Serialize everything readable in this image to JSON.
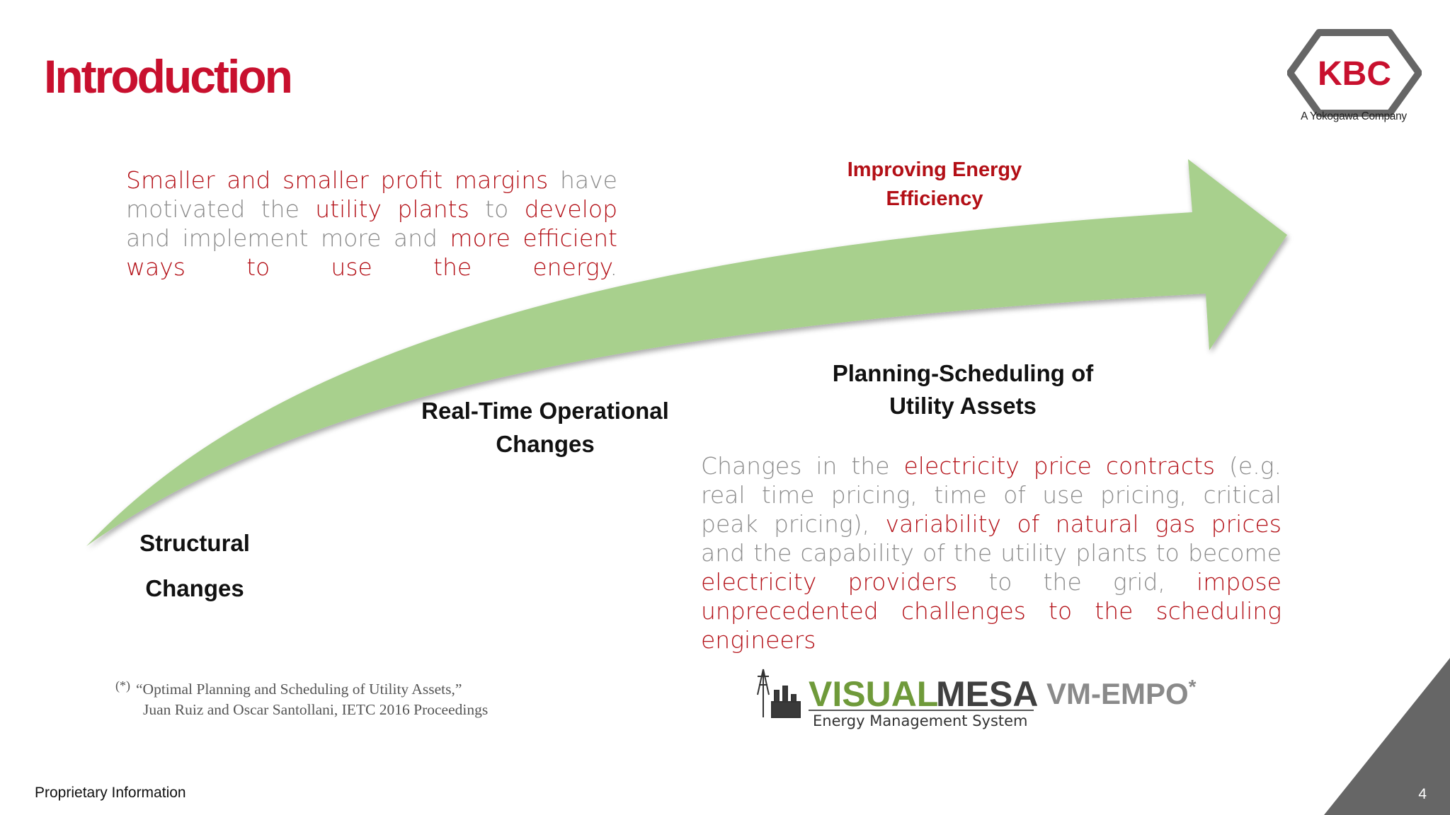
{
  "title": "Introduction",
  "colors": {
    "brand_red": "#c8102e",
    "text_red": "#b30f16",
    "gray_text": "#8c8c8c",
    "arrow_green": "#a8d08d",
    "corner_gray": "#666666"
  },
  "logo": {
    "text": "KBC",
    "subtitle": "A Yokogawa Company"
  },
  "intro": {
    "s1": "Smaller and smaller profit margins",
    "s2": " have motivated the ",
    "s3": "utility plants",
    "s4": " to ",
    "s5": "develop",
    "s6": " and implement more and ",
    "s7": "more efficient ways to use the energy",
    "s8": "."
  },
  "arrow_labels": {
    "improving": "Improving Energy Efficiency",
    "planning": "Planning-Scheduling of Utility Assets",
    "realtime": "Real-Time Operational Changes",
    "structural": "Structural Changes"
  },
  "detail": {
    "s1": "Changes in the ",
    "s2": "electricity price contracts",
    "s3": " (e.g. real time pricing, time of use pricing, critical peak pricing),",
    "s4": " variability of natural gas prices",
    "s5": " and the capability of the utility plants to become ",
    "s6": "electricity providers",
    "s7": " to the grid, ",
    "s8": "impose unprecedented challenges to the scheduling engineers"
  },
  "reference": {
    "mark": "(*)",
    "line1": "“Optimal Planning and Scheduling of Utility Assets,”",
    "line2": "Juan Ruiz and Oscar Santollani, IETC 2016 Proceedings"
  },
  "visual_mesa": {
    "word1": "VISUAL",
    "word2": "MESA",
    "tagline": "Energy Management System",
    "product": "VM-EMPO",
    "product_mark": "*"
  },
  "footer": {
    "label": "Proprietary Information",
    "page": "4"
  },
  "icons": [
    "kbc-hexagon-logo",
    "power-plant-icon",
    "growth-arrow"
  ]
}
